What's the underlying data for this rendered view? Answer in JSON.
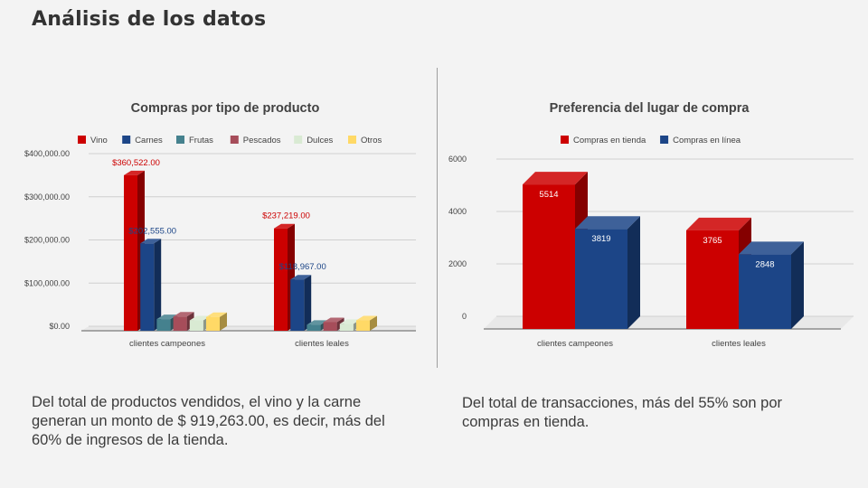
{
  "slide": {
    "title": "Análisis de los datos",
    "caption_left": "Del total de productos vendidos, el vino y la carne generan un monto de $ 919,263.00, es decir, más del 60% de ingresos de la tienda.",
    "caption_right": "Del total de transacciones, más del 55% son por compras en tienda."
  },
  "chart_data": [
    {
      "type": "bar",
      "style": "3d-clustered",
      "title": "Compras por tipo de producto",
      "categories": [
        "clientes campeones",
        "clientes leales"
      ],
      "series": [
        {
          "name": "Vino",
          "color": "#cc0000",
          "values": [
            360522,
            237219
          ],
          "labels": [
            "$360,522.00",
            "$237,219.00"
          ]
        },
        {
          "name": "Carnes",
          "color": "#1c4587",
          "values": [
            202555,
            118967
          ],
          "labels": [
            "$202,555.00",
            "$118,967.00"
          ]
        },
        {
          "name": "Frutas",
          "color": "#45818e",
          "values": [
            27000,
            14000
          ],
          "labels": []
        },
        {
          "name": "Pescados",
          "color": "#a64d5a",
          "values": [
            33000,
            20000
          ],
          "labels": []
        },
        {
          "name": "Dulces",
          "color": "#d9ead3",
          "values": [
            24000,
            16000
          ],
          "labels": []
        },
        {
          "name": "Otros",
          "color": "#ffd966",
          "values": [
            32000,
            24000
          ],
          "labels": []
        }
      ],
      "yticks": [
        "$0.00",
        "$100,000.00",
        "$200,000.00",
        "$300,000.00",
        "$400,000.00"
      ],
      "ylim": [
        0,
        400000
      ],
      "legend_position": "top",
      "grid": true
    },
    {
      "type": "bar",
      "style": "3d-clustered",
      "title": "Preferencia del lugar de compra",
      "categories": [
        "clientes campeones",
        "clientes leales"
      ],
      "series": [
        {
          "name": "Compras en tienda",
          "color": "#cc0000",
          "values": [
            5514,
            3765
          ],
          "labels": [
            "5514",
            "3765"
          ]
        },
        {
          "name": "Compras en línea",
          "color": "#1c4587",
          "values": [
            3819,
            2848
          ],
          "labels": [
            "3819",
            "2848"
          ]
        }
      ],
      "yticks": [
        "0",
        "2000",
        "4000",
        "6000"
      ],
      "ylim": [
        0,
        6000
      ],
      "legend_position": "top",
      "grid": true
    }
  ]
}
